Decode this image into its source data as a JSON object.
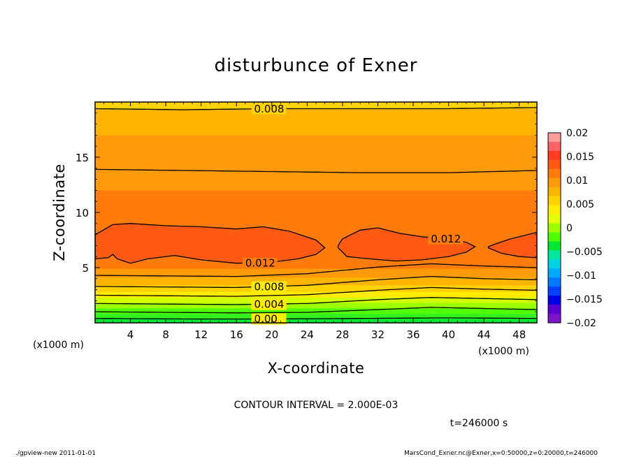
{
  "chart_data": {
    "type": "contour",
    "title": "disturbunce of Exner",
    "xlabel": "X-coordinate",
    "ylabel": "Z-coordinate",
    "x_unit_label_left": "(x1000 m)",
    "x_unit_label_right": "(x1000 m)",
    "xlim": [
      0,
      50
    ],
    "ylim": [
      0,
      20
    ],
    "x_ticks": [
      4,
      8,
      12,
      16,
      20,
      24,
      28,
      32,
      36,
      40,
      44,
      48
    ],
    "y_ticks": [
      5,
      10,
      15
    ],
    "x_tick_labels": [
      "4",
      "8",
      "12",
      "16",
      "20",
      "24",
      "28",
      "32",
      "36",
      "40",
      "44",
      "48"
    ],
    "y_tick_labels": [
      "5",
      "10",
      "15"
    ],
    "contour_interval_text": "CONTOUR INTERVAL = 2.000E-03",
    "time_text": "t=246000 s",
    "colorbar": {
      "min": -0.02,
      "max": 0.02,
      "tick_values": [
        0.02,
        0.015,
        0.01,
        0.005,
        0,
        -0.005,
        -0.01,
        -0.015,
        -0.02
      ],
      "tick_labels": [
        "0.02",
        "0.015",
        "0.01",
        "0.005",
        "0",
        "−0.005",
        "−0.01",
        "−0.015",
        "−0.02"
      ],
      "colors_top_to_bottom": [
        "#ff9d9d",
        "#ff6464",
        "#ff3c1e",
        "#ff5a14",
        "#ff7c0c",
        "#ff9a0a",
        "#ffb400",
        "#ffd200",
        "#ffec00",
        "#e6ff00",
        "#9cff00",
        "#50ff00",
        "#00e632",
        "#00e6a0",
        "#00d2e6",
        "#00aaff",
        "#0078ff",
        "#0040ff",
        "#0000e6",
        "#5a00d2",
        "#7c14c8"
      ]
    },
    "bands_bottom_to_top": [
      {
        "z_top": 0.35,
        "color": "#00e632"
      },
      {
        "z_top": 0.8,
        "color": "#32f01e"
      },
      {
        "z_top": 1.3,
        "color": "#50ff00"
      },
      {
        "z_top": 1.8,
        "color": "#9cff00"
      },
      {
        "z_top": 2.3,
        "color": "#d2ff00"
      },
      {
        "z_top": 2.8,
        "color": "#ffec00"
      },
      {
        "z_top": 3.4,
        "color": "#ffd200"
      },
      {
        "z_top": 4.1,
        "color": "#ffb400"
      },
      {
        "z_top": 4.9,
        "color": "#ff9a0a"
      },
      {
        "z_top": 12.0,
        "color": "#ff7c0c"
      },
      {
        "z_top": 17.0,
        "color": "#ff9a0a"
      },
      {
        "z_top": 19.4,
        "color": "#ffb400"
      },
      {
        "z_top": 20.0,
        "color": "#ffd200"
      }
    ],
    "contours": [
      {
        "level": 0.0,
        "label": "0.00",
        "label_x": 18,
        "points": [
          [
            0,
            0.4
          ],
          [
            10,
            0.35
          ],
          [
            20,
            0.35
          ],
          [
            30,
            0.4
          ],
          [
            40,
            0.45
          ],
          [
            50,
            0.4
          ]
        ]
      },
      {
        "level": 0.002,
        "label": "",
        "points": [
          [
            0,
            1.0
          ],
          [
            8,
            0.95
          ],
          [
            16,
            0.9
          ],
          [
            24,
            0.95
          ],
          [
            32,
            1.2
          ],
          [
            38,
            1.4
          ],
          [
            44,
            1.3
          ],
          [
            50,
            1.2
          ]
        ]
      },
      {
        "level": 0.004,
        "label": "0.004",
        "label_x": 18,
        "points": [
          [
            0,
            1.75
          ],
          [
            8,
            1.7
          ],
          [
            16,
            1.65
          ],
          [
            24,
            1.75
          ],
          [
            32,
            2.1
          ],
          [
            38,
            2.3
          ],
          [
            44,
            2.2
          ],
          [
            50,
            2.1
          ]
        ]
      },
      {
        "level": 0.006,
        "label": "",
        "points": [
          [
            0,
            2.5
          ],
          [
            8,
            2.45
          ],
          [
            16,
            2.4
          ],
          [
            24,
            2.55
          ],
          [
            32,
            2.95
          ],
          [
            38,
            3.2
          ],
          [
            44,
            3.05
          ],
          [
            50,
            2.95
          ]
        ]
      },
      {
        "level": 0.008,
        "label": "0.008",
        "label_x": 18,
        "points": [
          [
            0,
            3.3
          ],
          [
            8,
            3.25
          ],
          [
            16,
            3.2
          ],
          [
            24,
            3.4
          ],
          [
            32,
            3.9
          ],
          [
            38,
            4.2
          ],
          [
            44,
            4.0
          ],
          [
            50,
            3.9
          ]
        ]
      },
      {
        "level": 0.01,
        "label": "",
        "points": [
          [
            0,
            4.3
          ],
          [
            8,
            4.25
          ],
          [
            16,
            4.2
          ],
          [
            24,
            4.45
          ],
          [
            32,
            5.05
          ],
          [
            38,
            5.35
          ],
          [
            44,
            5.15
          ],
          [
            50,
            5.0
          ]
        ]
      },
      {
        "level": 0.01,
        "label": "",
        "points": [
          [
            0,
            13.9
          ],
          [
            10,
            13.8
          ],
          [
            20,
            13.7
          ],
          [
            30,
            13.6
          ],
          [
            40,
            13.6
          ],
          [
            50,
            13.8
          ]
        ]
      },
      {
        "level": 0.008,
        "label": "0.008",
        "label_x": 18,
        "points": [
          [
            0,
            19.4
          ],
          [
            10,
            19.3
          ],
          [
            20,
            19.4
          ],
          [
            30,
            19.4
          ],
          [
            40,
            19.4
          ],
          [
            50,
            19.5
          ]
        ]
      }
    ],
    "closed_012_regions": [
      {
        "label": "0.012",
        "label_x": 17,
        "points": [
          [
            0,
            5.8
          ],
          [
            1.5,
            5.9
          ],
          [
            2,
            6.2
          ],
          [
            2.5,
            5.8
          ],
          [
            4,
            5.4
          ],
          [
            6,
            5.8
          ],
          [
            9,
            6.1
          ],
          [
            12,
            5.7
          ],
          [
            16,
            5.4
          ],
          [
            20,
            5.5
          ],
          [
            23,
            5.8
          ],
          [
            25,
            6.2
          ],
          [
            26,
            6.8
          ],
          [
            25,
            7.5
          ],
          [
            22,
            8.3
          ],
          [
            19,
            8.7
          ],
          [
            16,
            8.5
          ],
          [
            12,
            8.7
          ],
          [
            8,
            8.8
          ],
          [
            4,
            9.0
          ],
          [
            2,
            8.9
          ],
          [
            0.5,
            8.2
          ],
          [
            0,
            8.0
          ]
        ]
      },
      {
        "label": "0.012",
        "label_x": 38,
        "points": [
          [
            27.5,
            6.8
          ],
          [
            28.5,
            6.0
          ],
          [
            31,
            5.8
          ],
          [
            34,
            5.6
          ],
          [
            37,
            5.7
          ],
          [
            40,
            6.0
          ],
          [
            42,
            6.4
          ],
          [
            43,
            6.9
          ],
          [
            42,
            7.3
          ],
          [
            40,
            7.6
          ],
          [
            37,
            7.8
          ],
          [
            34.5,
            8.1
          ],
          [
            32,
            8.6
          ],
          [
            30,
            8.4
          ],
          [
            28,
            7.6
          ],
          [
            27.5,
            7.0
          ]
        ]
      },
      {
        "label": "",
        "points": [
          [
            44.5,
            6.8
          ],
          [
            46,
            6.3
          ],
          [
            48,
            6.0
          ],
          [
            50,
            5.9
          ],
          [
            50,
            8.2
          ],
          [
            48.5,
            7.9
          ],
          [
            47,
            7.6
          ],
          [
            45.5,
            7.2
          ],
          [
            44.5,
            6.9
          ]
        ]
      }
    ]
  },
  "footer": {
    "left": "./gpview-new   2011-01-01",
    "right": "MarsCond_Exner.nc@Exner,x=0:50000,z=0:20000,t=246000"
  }
}
